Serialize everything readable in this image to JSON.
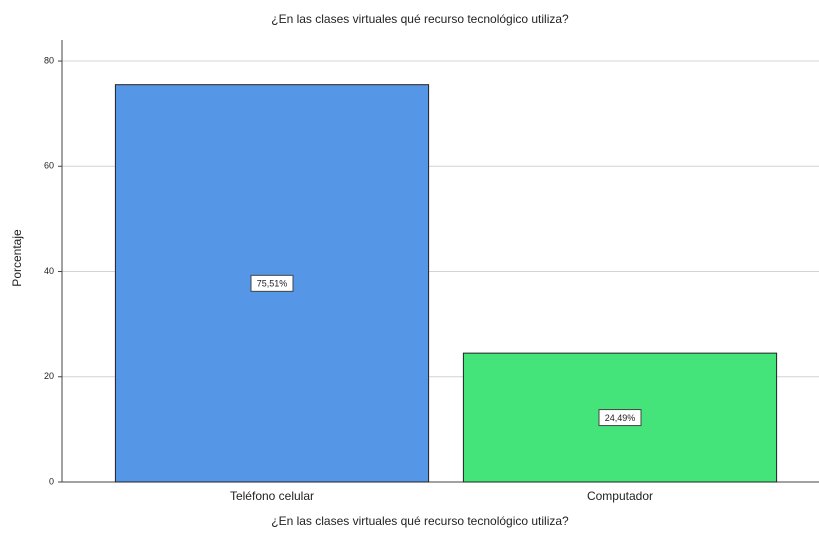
{
  "chart_data": {
    "type": "bar",
    "title": "¿En las clases virtuales  qué recurso tecnológico utiliza?",
    "x_label": "¿En las clases virtuales  qué recurso tecnológico utiliza?",
    "y_label": "Porcentaje",
    "categories": [
      "Teléfono celular",
      "Computador"
    ],
    "values": [
      75.51,
      24.49
    ],
    "value_labels": [
      "75,51%",
      "24,49%"
    ],
    "colors": [
      "#5596e6",
      "#44e47a"
    ],
    "ylim": [
      0,
      84
    ],
    "yticks": [
      0,
      20,
      40,
      60,
      80
    ],
    "grid": true
  }
}
